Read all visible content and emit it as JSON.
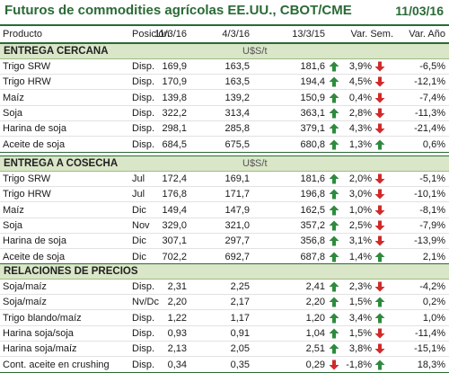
{
  "title": "Futuros de commodities agrícolas EE.UU., CBOT/CME",
  "date": "11/03/16",
  "headers": {
    "product": "Producto",
    "position": "Posición",
    "d1": "11/3/16",
    "d2": "4/3/16",
    "d3": "13/3/15",
    "week": "Var. Sem.",
    "year": "Var. Año"
  },
  "sections": [
    {
      "label": "ENTREGA CERCANA",
      "unit": "U$S/t",
      "rows": [
        {
          "product": "Trigo SRW",
          "position": "Disp.",
          "v1": "169,9",
          "v2": "163,5",
          "v3": "181,6",
          "a1": "up",
          "week": "3,9%",
          "a2": "down",
          "year": "-6,5%"
        },
        {
          "product": "Trigo HRW",
          "position": "Disp.",
          "v1": "170,9",
          "v2": "163,5",
          "v3": "194,4",
          "a1": "up",
          "week": "4,5%",
          "a2": "down",
          "year": "-12,1%"
        },
        {
          "product": "Maíz",
          "position": "Disp.",
          "v1": "139,8",
          "v2": "139,2",
          "v3": "150,9",
          "a1": "up",
          "week": "0,4%",
          "a2": "down",
          "year": "-7,4%"
        },
        {
          "product": "Soja",
          "position": "Disp.",
          "v1": "322,2",
          "v2": "313,4",
          "v3": "363,1",
          "a1": "up",
          "week": "2,8%",
          "a2": "down",
          "year": "-11,3%"
        },
        {
          "product": "Harina de soja",
          "position": "Disp.",
          "v1": "298,1",
          "v2": "285,8",
          "v3": "379,1",
          "a1": "up",
          "week": "4,3%",
          "a2": "down",
          "year": "-21,4%"
        },
        {
          "product": "Aceite de soja",
          "position": "Disp.",
          "v1": "684,5",
          "v2": "675,5",
          "v3": "680,8",
          "a1": "up",
          "week": "1,3%",
          "a2": "up",
          "year": "0,6%"
        }
      ]
    },
    {
      "label": "ENTREGA A COSECHA",
      "unit": "U$S/t",
      "rows": [
        {
          "product": "Trigo SRW",
          "position": "Jul",
          "v1": "172,4",
          "v2": "169,1",
          "v3": "181,6",
          "a1": "up",
          "week": "2,0%",
          "a2": "down",
          "year": "-5,1%"
        },
        {
          "product": "Trigo HRW",
          "position": "Jul",
          "v1": "176,8",
          "v2": "171,7",
          "v3": "196,8",
          "a1": "up",
          "week": "3,0%",
          "a2": "down",
          "year": "-10,1%"
        },
        {
          "product": "Maíz",
          "position": "Dic",
          "v1": "149,4",
          "v2": "147,9",
          "v3": "162,5",
          "a1": "up",
          "week": "1,0%",
          "a2": "down",
          "year": "-8,1%"
        },
        {
          "product": "Soja",
          "position": "Nov",
          "v1": "329,0",
          "v2": "321,0",
          "v3": "357,2",
          "a1": "up",
          "week": "2,5%",
          "a2": "down",
          "year": "-7,9%"
        },
        {
          "product": "Harina de soja",
          "position": "Dic",
          "v1": "307,1",
          "v2": "297,7",
          "v3": "356,8",
          "a1": "up",
          "week": "3,1%",
          "a2": "down",
          "year": "-13,9%"
        },
        {
          "product": "Aceite de soja",
          "position": "Dic",
          "v1": "702,2",
          "v2": "692,7",
          "v3": "687,8",
          "a1": "up",
          "week": "1,4%",
          "a2": "up",
          "year": "2,1%"
        }
      ]
    },
    {
      "label": "RELACIONES DE PRECIOS",
      "unit": "",
      "rows": [
        {
          "product": "Soja/maíz",
          "position": "Disp.",
          "v1": "2,31",
          "v2": "2,25",
          "v3": "2,41",
          "a1": "up",
          "week": "2,3%",
          "a2": "down",
          "year": "-4,2%"
        },
        {
          "product": "Soja/maíz",
          "position": "Nv/Dc",
          "v1": "2,20",
          "v2": "2,17",
          "v3": "2,20",
          "a1": "up",
          "week": "1,5%",
          "a2": "up",
          "year": "0,2%"
        },
        {
          "product": "Trigo blando/maíz",
          "position": "Disp.",
          "v1": "1,22",
          "v2": "1,17",
          "v3": "1,20",
          "a1": "up",
          "week": "3,4%",
          "a2": "up",
          "year": "1,0%"
        },
        {
          "product": "Harina soja/soja",
          "position": "Disp.",
          "v1": "0,93",
          "v2": "0,91",
          "v3": "1,04",
          "a1": "up",
          "week": "1,5%",
          "a2": "down",
          "year": "-11,4%"
        },
        {
          "product": "Harina soja/maíz",
          "position": "Disp.",
          "v1": "2,13",
          "v2": "2,05",
          "v3": "2,51",
          "a1": "up",
          "week": "3,8%",
          "a2": "down",
          "year": "-15,1%"
        },
        {
          "product": "Cont. aceite en crushing",
          "position": "Disp.",
          "v1": "0,34",
          "v2": "0,35",
          "v3": "0,29",
          "a1": "down",
          "week": "-1,8%",
          "a2": "up",
          "year": "18,3%"
        }
      ]
    }
  ],
  "colors": {
    "up": "#2e8b3e",
    "down": "#d12a2a",
    "accent": "#2a6a36",
    "section_bg": "#d9e6c8"
  }
}
